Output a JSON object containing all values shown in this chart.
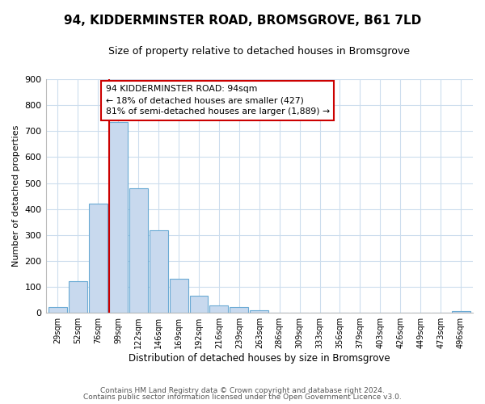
{
  "title": "94, KIDDERMINSTER ROAD, BROMSGROVE, B61 7LD",
  "subtitle": "Size of property relative to detached houses in Bromsgrove",
  "xlabel": "Distribution of detached houses by size in Bromsgrove",
  "ylabel": "Number of detached properties",
  "bin_labels": [
    "29sqm",
    "52sqm",
    "76sqm",
    "99sqm",
    "122sqm",
    "146sqm",
    "169sqm",
    "192sqm",
    "216sqm",
    "239sqm",
    "263sqm",
    "286sqm",
    "309sqm",
    "333sqm",
    "356sqm",
    "379sqm",
    "403sqm",
    "426sqm",
    "449sqm",
    "473sqm",
    "496sqm"
  ],
  "bar_values": [
    22,
    122,
    420,
    735,
    480,
    318,
    132,
    65,
    30,
    22,
    10,
    0,
    0,
    0,
    0,
    0,
    0,
    0,
    0,
    0,
    8
  ],
  "bar_color": "#c8d9ee",
  "bar_edge_color": "#6aaad4",
  "vline_color": "#cc0000",
  "annotation_line1": "94 KIDDERMINSTER ROAD: 94sqm",
  "annotation_line2": "← 18% of detached houses are smaller (427)",
  "annotation_line3": "81% of semi-detached houses are larger (1,889) →",
  "ylim": [
    0,
    900
  ],
  "yticks": [
    0,
    100,
    200,
    300,
    400,
    500,
    600,
    700,
    800,
    900
  ],
  "footer1": "Contains HM Land Registry data © Crown copyright and database right 2024.",
  "footer2": "Contains public sector information licensed under the Open Government Licence v3.0.",
  "background_color": "#ffffff",
  "grid_color": "#ccdded"
}
